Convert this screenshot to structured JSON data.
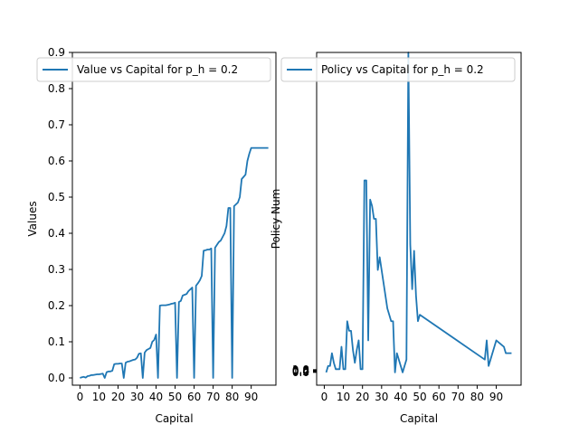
{
  "chart_data": [
    {
      "type": "line",
      "xlabel": "Capital",
      "ylabel": "Values",
      "xlim": [
        -4,
        103
      ],
      "ylim": [
        -0.02,
        0.9
      ],
      "xticks": [
        0,
        10,
        20,
        30,
        40,
        50,
        60,
        70,
        80,
        90
      ],
      "yticks": [
        0.0,
        0.1,
        0.2,
        0.3,
        0.4,
        0.5,
        0.6,
        0.7,
        0.8,
        0.9
      ],
      "ytick_labels": [
        "0.0",
        "0.1",
        "0.2",
        "0.3",
        "0.4",
        "0.5",
        "0.6",
        "0.7",
        "0.8",
        "0.9"
      ],
      "legend_position": "top-right",
      "series": [
        {
          "name": "Value vs Capital for p_h = 0.2",
          "color": "#1f77b4",
          "x": [
            0,
            1,
            2,
            3,
            4,
            5,
            6,
            7,
            8,
            9,
            10,
            11,
            12,
            13,
            14,
            15,
            16,
            17,
            18,
            19,
            20,
            21,
            22,
            23,
            24,
            25,
            26,
            27,
            28,
            29,
            30,
            31,
            32,
            33,
            34,
            35,
            36,
            37,
            38,
            39,
            40,
            41,
            42,
            43,
            44,
            45,
            46,
            47,
            48,
            49,
            50,
            51,
            52,
            53,
            54,
            55,
            56,
            57,
            58,
            59,
            60,
            61,
            62,
            63,
            64,
            65,
            66,
            67,
            68,
            69,
            70,
            71,
            72,
            73,
            74,
            75,
            76,
            77,
            78,
            79,
            80,
            81,
            82,
            83,
            84,
            85,
            86,
            87,
            88,
            89,
            90,
            91,
            92,
            93,
            94,
            95,
            96,
            97,
            98,
            99
          ],
          "y": [
            0.0,
            0.002,
            0.003,
            0.001,
            0.005,
            0.006,
            0.008,
            0.008,
            0.009,
            0.01,
            0.01,
            0.011,
            0.012,
            0.0,
            0.016,
            0.018,
            0.018,
            0.02,
            0.038,
            0.039,
            0.039,
            0.04,
            0.04,
            0.0,
            0.042,
            0.045,
            0.046,
            0.048,
            0.05,
            0.051,
            0.056,
            0.067,
            0.068,
            0.0,
            0.07,
            0.077,
            0.08,
            0.083,
            0.1,
            0.105,
            0.12,
            0.0,
            0.2,
            0.201,
            0.201,
            0.201,
            0.202,
            0.203,
            0.205,
            0.206,
            0.208,
            0.0,
            0.21,
            0.213,
            0.228,
            0.23,
            0.232,
            0.24,
            0.245,
            0.25,
            0.0,
            0.255,
            0.262,
            0.27,
            0.282,
            0.352,
            0.353,
            0.355,
            0.355,
            0.358,
            0.0,
            0.36,
            0.368,
            0.376,
            0.38,
            0.39,
            0.4,
            0.42,
            0.47,
            0.47,
            0.0,
            0.475,
            0.48,
            0.485,
            0.5,
            0.55,
            0.556,
            0.562,
            0.6,
            0.62,
            0.636,
            0.636,
            0.636,
            0.636,
            0.636,
            0.636,
            0.636,
            0.636,
            0.636,
            0.636
          ]
        }
      ]
    },
    {
      "type": "line",
      "xlabel": "Capital",
      "ylabel": "Policy Num",
      "xlim": [
        -4,
        103
      ],
      "ylim": [
        -0.2,
        5.0
      ],
      "xticks": [
        0,
        10,
        20,
        30,
        40,
        50,
        60,
        70,
        80,
        90
      ],
      "ytick_labels": [
        "0.0",
        "0.2",
        "0.4",
        "0.6",
        "0.8",
        "1.0"
      ],
      "legend_position": "top-left",
      "series": [
        {
          "name": "Policy vs Capital for p_h = 0.2",
          "color": "#1f77b4",
          "x": [
            1,
            2,
            3,
            4,
            5,
            6,
            7,
            8,
            9,
            10,
            11,
            12,
            13,
            14,
            15,
            16,
            17,
            18,
            19,
            20,
            21,
            22,
            23,
            24,
            25,
            26,
            27,
            28,
            29,
            30,
            31,
            32,
            33,
            34,
            35,
            36,
            37,
            38,
            39,
            40,
            41,
            42,
            43,
            44,
            45,
            46,
            47,
            48,
            49,
            50,
            84,
            85,
            86,
            90,
            94,
            95,
            96,
            97,
            98
          ],
          "y": [
            0.0,
            0.1,
            0.1,
            0.3,
            0.15,
            0.05,
            0.05,
            0.05,
            0.4,
            0.05,
            0.05,
            0.8,
            0.65,
            0.65,
            0.35,
            0.15,
            0.35,
            0.5,
            0.05,
            0.05,
            3.0,
            3.0,
            0.5,
            2.7,
            2.6,
            2.4,
            2.4,
            1.6,
            1.8,
            1.6,
            1.4,
            1.2,
            1.0,
            0.9,
            0.8,
            0.8,
            0.0,
            0.3,
            0.2,
            0.1,
            0.0,
            0.1,
            0.2,
            5.0,
            2.0,
            1.3,
            1.9,
            1.2,
            0.8,
            0.9,
            0.2,
            0.5,
            0.1,
            0.5,
            0.4,
            0.3,
            0.3,
            0.3,
            0.3
          ]
        }
      ]
    }
  ]
}
